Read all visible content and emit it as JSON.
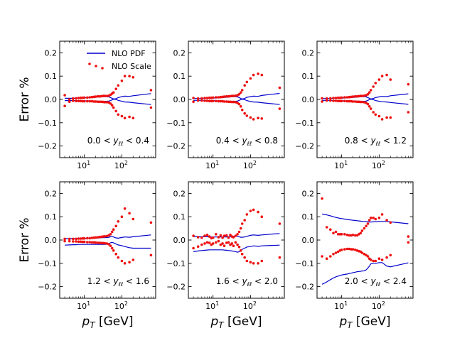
{
  "chart_data": {
    "type": "line",
    "layout": "2x3 grid of panels",
    "x_scale": "log",
    "xlim": [
      2.2,
      800
    ],
    "ylim": [
      -0.25,
      0.25
    ],
    "xlabel": "p_T [GeV]",
    "xlabel_unit": " [GeV]",
    "ylabel": "Error %",
    "yticks": [
      -0.2,
      -0.1,
      0.0,
      0.1,
      0.2
    ],
    "ytick_labels": [
      "−0.2",
      "−0.1",
      "0.0",
      "0.1",
      "0.2"
    ],
    "xticks": [
      {
        "value": 10,
        "base": "10",
        "exp": "1"
      },
      {
        "value": 100,
        "base": "10",
        "exp": "2"
      }
    ],
    "legend": {
      "location": "top-left of first panel",
      "entries": [
        {
          "label": "NLO PDF",
          "style": "line",
          "color": "#0000cc"
        },
        {
          "label": "NLO Scale",
          "style": "dots",
          "color": "#ee1111"
        }
      ]
    },
    "colors": {
      "pdf": "#0000cc",
      "scale": "#ee1111"
    },
    "x": [
      3,
      4,
      5,
      6,
      7,
      8,
      9,
      10,
      12,
      14,
      16,
      18,
      20,
      23,
      26,
      29,
      32,
      35,
      40,
      45,
      50,
      55,
      60,
      70,
      80,
      100,
      120,
      160,
      200,
      600
    ],
    "panels": [
      {
        "range_label": {
          "lo": "0.0",
          "hi": "0.4"
        },
        "pdf_upper": [
          0.005,
          0.005,
          0.005,
          0.005,
          0.006,
          0.006,
          0.006,
          0.007,
          0.007,
          0.008,
          0.008,
          0.009,
          0.01,
          0.01,
          0.011,
          0.012,
          0.012,
          0.012,
          0.012,
          0.011,
          0.008,
          0.005,
          0.002,
          0.003,
          0.008,
          0.012,
          0.014,
          0.013,
          0.016,
          0.025
        ],
        "pdf_lower": [
          -0.005,
          -0.005,
          -0.005,
          -0.005,
          -0.005,
          -0.006,
          -0.006,
          -0.006,
          -0.006,
          -0.006,
          -0.007,
          -0.007,
          -0.007,
          -0.007,
          -0.008,
          -0.008,
          -0.008,
          -0.008,
          -0.008,
          -0.007,
          -0.005,
          -0.002,
          0.001,
          0.0,
          -0.004,
          -0.008,
          -0.011,
          -0.012,
          -0.014,
          -0.022
        ],
        "scale_upper": [
          0.018,
          0.0,
          0.004,
          0.005,
          0.006,
          0.007,
          0.007,
          0.008,
          0.008,
          0.009,
          0.01,
          0.011,
          0.012,
          0.013,
          0.013,
          0.014,
          0.015,
          0.015,
          0.015,
          0.016,
          0.02,
          0.025,
          0.03,
          0.045,
          0.06,
          0.08,
          0.1,
          0.1,
          0.095,
          0.04
        ],
        "scale_lower": [
          -0.028,
          -0.01,
          -0.006,
          -0.007,
          -0.007,
          -0.007,
          -0.008,
          -0.008,
          -0.008,
          -0.008,
          -0.008,
          -0.009,
          -0.009,
          -0.01,
          -0.01,
          -0.01,
          -0.011,
          -0.012,
          -0.012,
          -0.013,
          -0.018,
          -0.025,
          -0.035,
          -0.05,
          -0.065,
          -0.072,
          -0.08,
          -0.075,
          -0.08,
          -0.035
        ]
      },
      {
        "range_label": {
          "lo": "0.4",
          "hi": "0.8"
        },
        "pdf_upper": [
          0.004,
          0.004,
          0.004,
          0.004,
          0.005,
          0.005,
          0.005,
          0.006,
          0.006,
          0.007,
          0.007,
          0.008,
          0.009,
          0.009,
          0.01,
          0.011,
          0.011,
          0.012,
          0.012,
          0.011,
          0.008,
          0.004,
          0.002,
          0.004,
          0.009,
          0.012,
          0.014,
          0.013,
          0.017,
          0.026
        ],
        "pdf_lower": [
          -0.004,
          -0.004,
          -0.004,
          -0.004,
          -0.005,
          -0.005,
          -0.005,
          -0.005,
          -0.006,
          -0.006,
          -0.006,
          -0.007,
          -0.007,
          -0.007,
          -0.008,
          -0.008,
          -0.008,
          -0.008,
          -0.008,
          -0.007,
          -0.004,
          -0.001,
          0.001,
          -0.001,
          -0.005,
          -0.009,
          -0.011,
          -0.012,
          -0.014,
          -0.022
        ],
        "scale_upper": [
          0.006,
          0.004,
          0.005,
          0.006,
          0.006,
          0.007,
          0.007,
          0.008,
          0.009,
          0.009,
          0.01,
          0.011,
          0.012,
          0.013,
          0.013,
          0.014,
          0.015,
          0.015,
          0.016,
          0.018,
          0.022,
          0.03,
          0.04,
          0.06,
          0.075,
          0.09,
          0.105,
          0.11,
          0.105,
          0.05
        ],
        "scale_lower": [
          -0.01,
          -0.005,
          -0.005,
          -0.006,
          -0.006,
          -0.007,
          -0.007,
          -0.007,
          -0.007,
          -0.008,
          -0.008,
          -0.008,
          -0.009,
          -0.009,
          -0.01,
          -0.01,
          -0.011,
          -0.011,
          -0.012,
          -0.015,
          -0.02,
          -0.03,
          -0.045,
          -0.06,
          -0.07,
          -0.078,
          -0.085,
          -0.08,
          -0.082,
          -0.04
        ]
      },
      {
        "range_label": {
          "lo": "0.8",
          "hi": "1.2"
        },
        "pdf_upper": [
          0.004,
          0.004,
          0.004,
          0.005,
          0.005,
          0.005,
          0.006,
          0.006,
          0.006,
          0.007,
          0.007,
          0.008,
          0.009,
          0.009,
          0.01,
          0.011,
          0.011,
          0.012,
          0.012,
          0.011,
          0.008,
          0.005,
          0.002,
          0.004,
          0.008,
          0.011,
          0.013,
          0.012,
          0.016,
          0.024
        ],
        "pdf_lower": [
          -0.004,
          -0.004,
          -0.004,
          -0.005,
          -0.005,
          -0.005,
          -0.005,
          -0.006,
          -0.006,
          -0.006,
          -0.006,
          -0.007,
          -0.007,
          -0.007,
          -0.008,
          -0.008,
          -0.008,
          -0.008,
          -0.008,
          -0.007,
          -0.004,
          -0.001,
          0.001,
          -0.001,
          -0.005,
          -0.008,
          -0.01,
          -0.011,
          -0.013,
          -0.021
        ],
        "scale_upper": [
          0.005,
          0.004,
          0.005,
          0.006,
          0.006,
          0.007,
          0.007,
          0.008,
          0.009,
          0.009,
          0.01,
          0.011,
          0.012,
          0.013,
          0.013,
          0.014,
          0.015,
          0.015,
          0.016,
          0.018,
          0.022,
          0.03,
          0.04,
          0.055,
          0.07,
          0.085,
          0.1,
          0.105,
          0.085,
          0.065
        ],
        "scale_lower": [
          -0.009,
          -0.005,
          -0.005,
          -0.006,
          -0.006,
          -0.007,
          -0.007,
          -0.007,
          -0.007,
          -0.008,
          -0.008,
          -0.008,
          -0.009,
          -0.009,
          -0.01,
          -0.01,
          -0.011,
          -0.011,
          -0.012,
          -0.015,
          -0.02,
          -0.03,
          -0.04,
          -0.055,
          -0.065,
          -0.072,
          -0.085,
          -0.078,
          -0.078,
          -0.055
        ]
      },
      {
        "range_label": {
          "lo": "1.2",
          "hi": "1.6"
        },
        "pdf_upper": [
          0.006,
          0.006,
          0.006,
          0.006,
          0.006,
          0.006,
          0.006,
          0.006,
          0.007,
          0.007,
          0.007,
          0.008,
          0.008,
          0.009,
          0.009,
          0.01,
          0.01,
          0.01,
          0.011,
          0.012,
          0.014,
          0.015,
          0.013,
          0.009,
          0.008,
          0.011,
          0.013,
          0.012,
          0.014,
          0.022
        ],
        "pdf_lower": [
          -0.022,
          -0.021,
          -0.02,
          -0.02,
          -0.019,
          -0.019,
          -0.019,
          -0.019,
          -0.019,
          -0.019,
          -0.019,
          -0.019,
          -0.019,
          -0.019,
          -0.019,
          -0.019,
          -0.019,
          -0.019,
          -0.018,
          -0.016,
          -0.012,
          -0.01,
          -0.012,
          -0.017,
          -0.021,
          -0.024,
          -0.028,
          -0.033,
          -0.035,
          -0.035
        ],
        "scale_upper": [
          0.005,
          0.005,
          0.005,
          0.005,
          0.006,
          0.006,
          0.007,
          0.007,
          0.008,
          0.008,
          0.009,
          0.01,
          0.011,
          0.012,
          0.013,
          0.014,
          0.015,
          0.016,
          0.017,
          0.02,
          0.025,
          0.035,
          0.045,
          0.06,
          0.08,
          0.1,
          0.135,
          0.115,
          0.09,
          0.075
        ],
        "scale_lower": [
          -0.005,
          -0.005,
          -0.006,
          -0.006,
          -0.007,
          -0.007,
          -0.008,
          -0.008,
          -0.009,
          -0.009,
          -0.01,
          -0.01,
          -0.011,
          -0.012,
          -0.012,
          -0.013,
          -0.013,
          -0.014,
          -0.015,
          -0.018,
          -0.025,
          -0.035,
          -0.045,
          -0.06,
          -0.075,
          -0.09,
          -0.1,
          -0.095,
          -0.085,
          -0.065
        ]
      },
      {
        "range_label": {
          "lo": "1.6",
          "hi": "2.0"
        },
        "pdf_upper": [
          0.015,
          0.015,
          0.014,
          0.014,
          0.014,
          0.014,
          0.013,
          0.013,
          0.013,
          0.013,
          0.013,
          0.013,
          0.013,
          0.013,
          0.014,
          0.015,
          0.016,
          0.016,
          0.018,
          0.016,
          0.014,
          0.012,
          0.012,
          0.013,
          0.016,
          0.02,
          0.022,
          0.02,
          0.022,
          0.028
        ],
        "pdf_lower": [
          -0.05,
          -0.047,
          -0.045,
          -0.044,
          -0.043,
          -0.042,
          -0.042,
          -0.042,
          -0.042,
          -0.042,
          -0.042,
          -0.042,
          -0.043,
          -0.044,
          -0.045,
          -0.046,
          -0.047,
          -0.048,
          -0.05,
          -0.052,
          -0.05,
          -0.045,
          -0.04,
          -0.035,
          -0.03,
          -0.028,
          -0.025,
          -0.027,
          -0.025,
          -0.022
        ],
        "scale_upper": [
          0.018,
          0.012,
          0.01,
          0.018,
          0.022,
          0.015,
          0.008,
          0.01,
          0.025,
          0.012,
          0.02,
          0.01,
          0.018,
          0.02,
          0.01,
          0.022,
          0.015,
          0.012,
          0.018,
          0.025,
          0.035,
          0.05,
          0.07,
          0.085,
          0.11,
          0.125,
          0.13,
          0.12,
          0.1,
          0.07
        ],
        "scale_lower": [
          -0.035,
          -0.028,
          -0.02,
          -0.015,
          -0.01,
          -0.012,
          -0.02,
          -0.015,
          -0.01,
          -0.005,
          -0.02,
          -0.015,
          -0.025,
          -0.012,
          -0.01,
          -0.02,
          -0.015,
          -0.025,
          -0.01,
          -0.02,
          -0.03,
          -0.045,
          -0.06,
          -0.075,
          -0.09,
          -0.095,
          -0.1,
          -0.1,
          -0.09,
          -0.075
        ]
      },
      {
        "range_label": {
          "lo": "2.0",
          "hi": "2.4"
        },
        "pdf_upper": [
          0.112,
          0.108,
          0.104,
          0.1,
          0.097,
          0.095,
          0.093,
          0.092,
          0.09,
          0.088,
          0.087,
          0.086,
          0.085,
          0.084,
          0.083,
          0.082,
          0.081,
          0.08,
          0.08,
          0.079,
          0.078,
          0.077,
          0.077,
          0.078,
          0.079,
          0.08,
          0.08,
          0.08,
          0.078,
          0.07
        ],
        "pdf_lower": [
          -0.19,
          -0.18,
          -0.17,
          -0.163,
          -0.158,
          -0.155,
          -0.152,
          -0.15,
          -0.148,
          -0.146,
          -0.144,
          -0.142,
          -0.14,
          -0.138,
          -0.136,
          -0.135,
          -0.134,
          -0.133,
          -0.132,
          -0.128,
          -0.12,
          -0.112,
          -0.102,
          -0.1,
          -0.1,
          -0.097,
          -0.097,
          -0.112,
          -0.115,
          -0.098
        ],
        "scale_upper": [
          0.178,
          0.055,
          0.045,
          0.03,
          0.035,
          0.025,
          0.025,
          0.025,
          0.025,
          0.022,
          0.02,
          0.02,
          0.022,
          0.02,
          0.02,
          0.025,
          0.03,
          0.04,
          0.05,
          0.06,
          0.07,
          0.085,
          0.095,
          0.095,
          0.09,
          0.095,
          0.11,
          0.085,
          0.075,
          0.015
        ],
        "scale_lower": [
          -0.07,
          -0.08,
          -0.07,
          -0.06,
          -0.055,
          -0.05,
          -0.045,
          -0.042,
          -0.04,
          -0.038,
          -0.038,
          -0.04,
          -0.04,
          -0.042,
          -0.045,
          -0.048,
          -0.05,
          -0.055,
          -0.06,
          -0.065,
          -0.07,
          -0.08,
          -0.085,
          -0.09,
          -0.09,
          -0.08,
          -0.085,
          -0.075,
          -0.065,
          -0.01
        ]
      }
    ]
  }
}
